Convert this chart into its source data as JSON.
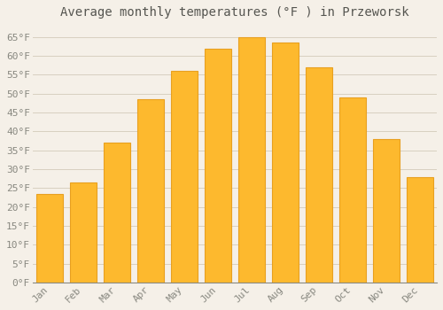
{
  "title": "Average monthly temperatures (°F ) in Przeworsk",
  "months": [
    "Jan",
    "Feb",
    "Mar",
    "Apr",
    "May",
    "Jun",
    "Jul",
    "Aug",
    "Sep",
    "Oct",
    "Nov",
    "Dec"
  ],
  "values": [
    23.5,
    26.5,
    37,
    48.5,
    56,
    62,
    65,
    63.5,
    57,
    49,
    38,
    28
  ],
  "bar_color": "#FDB92E",
  "bar_edge_color": "#E8A020",
  "background_color": "#f5f0e8",
  "grid_color": "#d8d0c0",
  "text_color": "#888880",
  "title_color": "#555550",
  "ylim": [
    0,
    68
  ],
  "yticks": [
    0,
    5,
    10,
    15,
    20,
    25,
    30,
    35,
    40,
    45,
    50,
    55,
    60,
    65
  ],
  "title_fontsize": 10,
  "tick_fontsize": 8,
  "font_family": "monospace",
  "bar_width": 0.78
}
